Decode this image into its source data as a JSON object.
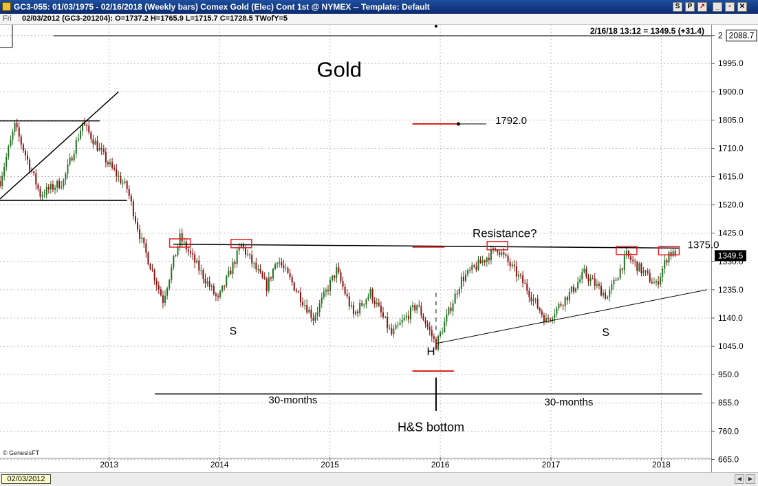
{
  "window": {
    "title": "GC3-055:  01/03/1975 - 02/16/2018  (Weekly bars)   Comex Gold (Elec) Cont 1st @ NYMEX  --  Template: Default",
    "buttons": [
      "S",
      "P",
      "↗",
      "_",
      "▫",
      "✕"
    ]
  },
  "info_bar": {
    "day": "Fri",
    "bar": "02/03/2012 (GC3-201204):  O=1737.2  H=1765.9  L=1715.7  C=1728.5  TWofY=5"
  },
  "last_price_readout": "2/16/18 13:12 = 1349.5 (+31.4)",
  "cursor_date": "02/03/2012",
  "colors": {
    "up": "#207020",
    "down": "#8a1010",
    "box": "#e02020",
    "title_bar": "#0a2a6e"
  },
  "chart_data": {
    "type": "candlestick",
    "title": "Gold",
    "watermark": "© GenesisFT",
    "x_start": "2012-01-06",
    "x_end": "2018-02-16",
    "x_axis_end": "2018-06-15",
    "x_ticks": [
      "2013",
      "2014",
      "2015",
      "2016",
      "2017",
      "2018"
    ],
    "ylim": [
      622,
      2125
    ],
    "y_ticks": [
      "2",
      "1995.0",
      "1900.0",
      "1805.0",
      "1710.0",
      "1615.0",
      "1520.0",
      "1425.0",
      "1330.0",
      "1235.0",
      "1140.0",
      "1045.0",
      "950.0",
      "855.0",
      "760.0",
      "665.0"
    ],
    "y_tick_values": [
      2088.7,
      1995,
      1900,
      1805,
      1710,
      1615,
      1520,
      1425,
      1330,
      1235,
      1140,
      1045,
      950,
      855,
      760,
      665
    ],
    "top_price_box": "2088.7",
    "last_price_box": "1349.5",
    "last_price": 1349.5,
    "anchors": [
      [
        "2012-01-06",
        1600
      ],
      [
        "2012-02-24",
        1785
      ],
      [
        "2012-05-18",
        1555
      ],
      [
        "2012-08-03",
        1600
      ],
      [
        "2012-10-05",
        1795
      ],
      [
        "2012-12-28",
        1660
      ],
      [
        "2013-03-01",
        1575
      ],
      [
        "2013-04-19",
        1395
      ],
      [
        "2013-06-28",
        1200
      ],
      [
        "2013-08-23",
        1410
      ],
      [
        "2013-12-27",
        1200
      ],
      [
        "2014-03-14",
        1385
      ],
      [
        "2014-06-06",
        1245
      ],
      [
        "2014-07-11",
        1340
      ],
      [
        "2014-11-07",
        1140
      ],
      [
        "2015-01-23",
        1300
      ],
      [
        "2015-03-20",
        1150
      ],
      [
        "2015-05-15",
        1225
      ],
      [
        "2015-07-24",
        1085
      ],
      [
        "2015-10-16",
        1185
      ],
      [
        "2015-12-18",
        1050
      ],
      [
        "2016-03-11",
        1270
      ],
      [
        "2016-07-08",
        1375
      ],
      [
        "2016-10-07",
        1250
      ],
      [
        "2016-12-16",
        1130
      ],
      [
        "2017-03-10",
        1230
      ],
      [
        "2017-04-21",
        1290
      ],
      [
        "2017-07-07",
        1210
      ],
      [
        "2017-09-08",
        1350
      ],
      [
        "2017-12-15",
        1250
      ],
      [
        "2018-01-26",
        1360
      ],
      [
        "2018-02-16",
        1349.5
      ]
    ],
    "annotations": [
      {
        "type": "text",
        "text": "Gold",
        "date": "2015-02-01",
        "price": 1950
      },
      {
        "type": "text",
        "text": "1792.0",
        "date": "2016-07-01",
        "price": 1792
      },
      {
        "type": "text",
        "text": "Resistance?",
        "date": "2016-08-01",
        "price": 1412
      },
      {
        "type": "text",
        "text": "1375.0",
        "date": "2018-05-20",
        "price": 1375
      },
      {
        "type": "text",
        "text": "S",
        "date": "2014-02-15",
        "price": 1085
      },
      {
        "type": "text",
        "text": "S",
        "date": "2017-07-01",
        "price": 1080
      },
      {
        "type": "text",
        "text": "H",
        "date": "2015-12-01",
        "price": 1015
      },
      {
        "type": "text",
        "text": "30-months",
        "date": "2014-09-01",
        "price": 853
      },
      {
        "type": "text",
        "text": "30-months",
        "date": "2017-03-01",
        "price": 846
      },
      {
        "type": "text",
        "text": "H&S bottom",
        "date": "2015-12-01",
        "price": 760
      }
    ],
    "lines": [
      {
        "name": "neckline",
        "from": [
          "2013-08-01",
          1388
        ],
        "to": [
          "2018-03-01",
          1375
        ]
      },
      {
        "name": "right-shoulder-support",
        "from": [
          "2015-12-20",
          1055
        ],
        "to": [
          "2018-06-01",
          1235
        ]
      },
      {
        "name": "channel-top",
        "from": [
          "2012-01-06",
          1802
        ],
        "to": [
          "2012-12-01",
          1802
        ]
      },
      {
        "name": "channel-bottom",
        "from": [
          "2012-01-06",
          1535
        ],
        "to": [
          "2013-03-01",
          1535
        ]
      },
      {
        "name": "channel-trendline",
        "from": [
          "2012-01-06",
          1540
        ],
        "to": [
          "2013-02-01",
          1900
        ]
      },
      {
        "name": "top-hline",
        "from": [
          "2012-07-01",
          2088
        ],
        "to": [
          "2018-06-15",
          2088
        ]
      },
      {
        "name": "30-month-span",
        "from": [
          "2013-06-01",
          885
        ],
        "to": [
          "2018-05-15",
          885
        ]
      },
      {
        "name": "1792-marker",
        "from": [
          "2015-10-01",
          1792
        ],
        "to": [
          "2016-06-01",
          1792
        ]
      },
      {
        "name": "resistance-mark",
        "from": [
          "2015-10-01",
          1378
        ],
        "to": [
          "2016-01-15",
          1378
        ]
      },
      {
        "name": "head-mark",
        "from": [
          "2015-10-01",
          962
        ],
        "to": [
          "2016-02-15",
          962
        ]
      },
      {
        "name": "head-vertical",
        "from": [
          "2015-12-18",
          828
        ],
        "to": [
          "2015-12-18",
          940
        ]
      },
      {
        "name": "head-dashed",
        "from": [
          "2015-12-18",
          1100
        ],
        "to": [
          "2015-12-18",
          1230
        ]
      }
    ],
    "boxes": [
      {
        "date": "2013-08-23",
        "price": 1392
      },
      {
        "date": "2014-03-14",
        "price": 1390
      },
      {
        "date": "2016-07-08",
        "price": 1383
      },
      {
        "date": "2017-09-08",
        "price": 1367
      },
      {
        "date": "2018-01-26",
        "price": 1366
      }
    ]
  }
}
